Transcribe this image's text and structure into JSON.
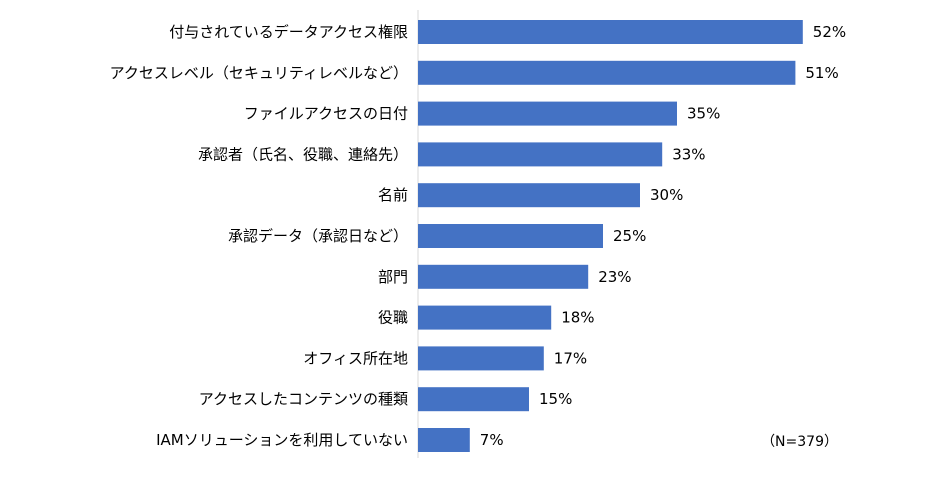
{
  "chart_data": {
    "type": "bar",
    "orientation": "horizontal",
    "categories": [
      "付与されているデータアクセス権限",
      "アクセスレベル（セキュリティレベルなど）",
      "ファイルアクセスの日付",
      "承認者（氏名、役職、連絡先）",
      "名前",
      "承認データ（承認日など）",
      "部門",
      "役職",
      "オフィス所在地",
      "アクセスしたコンテンツの種類",
      "IAMソリューションを利用していない"
    ],
    "values": [
      52,
      51,
      35,
      33,
      30,
      25,
      23,
      18,
      17,
      15,
      7
    ],
    "value_labels": [
      "52%",
      "51%",
      "35%",
      "33%",
      "30%",
      "25%",
      "23%",
      "18%",
      "17%",
      "15%",
      "7%"
    ],
    "unit": "%",
    "xlim": [
      0,
      100
    ],
    "title": "",
    "xlabel": "",
    "ylabel": "",
    "annotation": "（N=379）",
    "grid": false,
    "legend": "none",
    "bar_color": "#4472c4",
    "axis_color": "#d9d9d9"
  }
}
